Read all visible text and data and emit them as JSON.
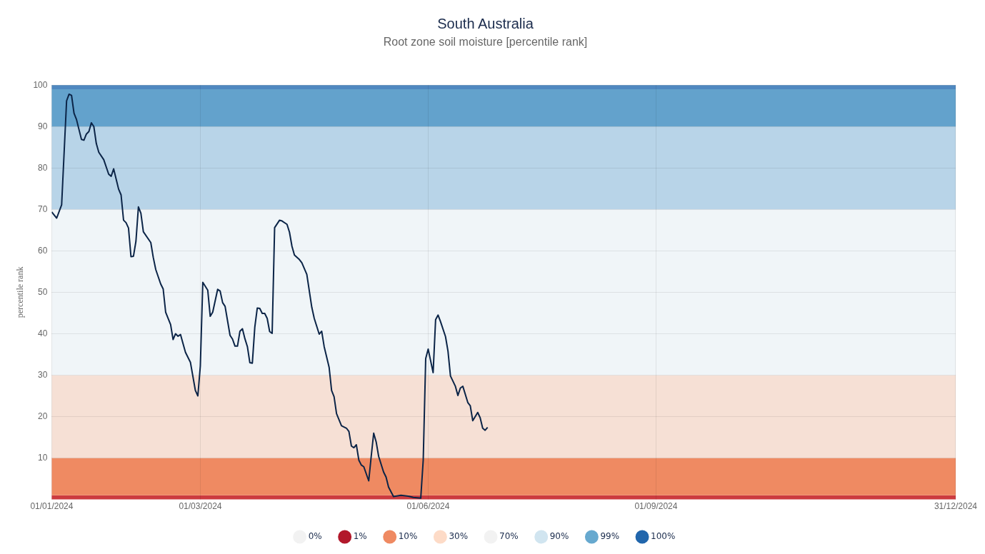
{
  "chart_data": {
    "type": "line",
    "title": "South Australia",
    "subtitle": "Root zone soil moisture [percentile rank]",
    "ylabel": "percentile rank",
    "xlim": [
      "2024-01-01",
      "2024-12-31"
    ],
    "xticks": [
      {
        "value": "2024-01-01",
        "label": "01/01/2024"
      },
      {
        "value": "2024-03-01",
        "label": "01/03/2024"
      },
      {
        "value": "2024-06-01",
        "label": "01/06/2024"
      },
      {
        "value": "2024-09-01",
        "label": "01/09/2024"
      },
      {
        "value": "2024-12-31",
        "label": "31/12/2024"
      }
    ],
    "ylim": [
      0,
      100
    ],
    "yticks": [
      10,
      20,
      30,
      40,
      50,
      60,
      70,
      80,
      90,
      100
    ],
    "grid": true,
    "legend": "bottom",
    "marker": "none",
    "bands": [
      {
        "axis": "y",
        "from": 0,
        "to": 1,
        "color": "#cc3b3f"
      },
      {
        "axis": "y",
        "from": 1,
        "to": 10,
        "color": "#ef8a62"
      },
      {
        "axis": "y",
        "from": 10,
        "to": 30,
        "color": "#f6e0d5"
      },
      {
        "axis": "y",
        "from": 30,
        "to": 70,
        "color": "#f0f5f8"
      },
      {
        "axis": "y",
        "from": 70,
        "to": 90,
        "color": "#b8d4e8"
      },
      {
        "axis": "y",
        "from": 90,
        "to": 99,
        "color": "#63a2cc"
      },
      {
        "axis": "y",
        "from": 99,
        "to": 100,
        "color": "#4f88c0"
      }
    ],
    "series": [
      {
        "color": "#0b2447",
        "x": [
          "2024-01-01",
          "2024-01-03",
          "2024-01-05",
          "2024-01-07",
          "2024-01-08",
          "2024-01-09",
          "2024-01-10",
          "2024-01-11",
          "2024-01-13",
          "2024-01-14",
          "2024-01-15",
          "2024-01-16",
          "2024-01-17",
          "2024-01-18",
          "2024-01-19",
          "2024-01-20",
          "2024-01-22",
          "2024-01-24",
          "2024-01-25",
          "2024-01-26",
          "2024-01-28",
          "2024-01-29",
          "2024-01-30",
          "2024-01-31",
          "2024-02-01",
          "2024-02-02",
          "2024-02-03",
          "2024-02-04",
          "2024-02-05",
          "2024-02-06",
          "2024-02-07",
          "2024-02-10",
          "2024-02-11",
          "2024-02-12",
          "2024-02-14",
          "2024-02-15",
          "2024-02-16",
          "2024-02-18",
          "2024-02-19",
          "2024-02-20",
          "2024-02-21",
          "2024-02-22",
          "2024-02-24",
          "2024-02-26",
          "2024-02-28",
          "2024-02-29",
          "2024-03-01",
          "2024-03-02",
          "2024-03-04",
          "2024-03-05",
          "2024-03-06",
          "2024-03-08",
          "2024-03-09",
          "2024-03-10",
          "2024-03-11",
          "2024-03-13",
          "2024-03-14",
          "2024-03-15",
          "2024-03-16",
          "2024-03-17",
          "2024-03-18",
          "2024-03-19",
          "2024-03-20",
          "2024-03-21",
          "2024-03-22",
          "2024-03-23",
          "2024-03-24",
          "2024-03-25",
          "2024-03-26",
          "2024-03-27",
          "2024-03-28",
          "2024-03-29",
          "2024-03-30",
          "2024-03-31",
          "2024-04-01",
          "2024-04-02",
          "2024-04-03",
          "2024-04-05",
          "2024-04-06",
          "2024-04-07",
          "2024-04-08",
          "2024-04-10",
          "2024-04-11",
          "2024-04-13",
          "2024-04-15",
          "2024-04-16",
          "2024-04-18",
          "2024-04-19",
          "2024-04-20",
          "2024-04-22",
          "2024-04-23",
          "2024-04-24",
          "2024-04-25",
          "2024-04-27",
          "2024-04-29",
          "2024-04-30",
          "2024-05-01",
          "2024-05-02",
          "2024-05-03",
          "2024-05-04",
          "2024-05-05",
          "2024-05-06",
          "2024-05-08",
          "2024-05-09",
          "2024-05-10",
          "2024-05-11",
          "2024-05-12",
          "2024-05-14",
          "2024-05-15",
          "2024-05-16",
          "2024-05-18",
          "2024-05-21",
          "2024-05-24",
          "2024-05-26",
          "2024-05-29",
          "2024-05-30",
          "2024-05-31",
          "2024-06-01",
          "2024-06-03",
          "2024-06-04",
          "2024-06-05",
          "2024-06-06",
          "2024-06-08",
          "2024-06-09",
          "2024-06-10",
          "2024-06-12",
          "2024-06-13",
          "2024-06-14",
          "2024-06-15",
          "2024-06-17",
          "2024-06-18",
          "2024-06-19",
          "2024-06-21",
          "2024-06-22",
          "2024-06-23",
          "2024-06-24",
          "2024-06-25"
        ],
        "values": [
          69.4,
          67.9,
          71.1,
          96.2,
          97.8,
          97.5,
          93.2,
          91.7,
          86.9,
          86.7,
          88.2,
          88.8,
          90.9,
          90.0,
          85.9,
          83.8,
          82.0,
          78.5,
          78.0,
          79.8,
          74.9,
          73.5,
          67.4,
          66.8,
          65.5,
          58.6,
          58.7,
          62.3,
          70.6,
          69.1,
          64.6,
          62.0,
          58.4,
          55.5,
          52.0,
          50.8,
          45.2,
          42.2,
          38.6,
          40.0,
          39.4,
          39.8,
          35.5,
          33.1,
          26.3,
          25.0,
          32.2,
          52.4,
          50.5,
          44.2,
          45.2,
          50.7,
          50.3,
          47.5,
          46.6,
          39.6,
          38.7,
          37.0,
          37.0,
          40.6,
          41.2,
          38.8,
          36.9,
          33.0,
          32.9,
          41.6,
          46.2,
          46.1,
          44.9,
          44.9,
          43.7,
          40.5,
          40.1,
          65.6,
          66.5,
          67.4,
          67.2,
          66.4,
          64.5,
          61.1,
          59.0,
          57.9,
          57.1,
          54.3,
          46.4,
          43.7,
          39.9,
          40.6,
          36.9,
          31.9,
          26.3,
          24.8,
          20.7,
          17.8,
          17.2,
          16.4,
          12.9,
          12.5,
          13.2,
          9.5,
          8.3,
          7.9,
          4.5,
          10.4,
          16.0,
          13.9,
          10.4,
          6.6,
          5.4,
          3.0,
          0.7,
          1.0,
          0.8,
          0.5,
          0.3,
          9.5,
          34.0,
          36.3,
          30.6,
          43.4,
          44.5,
          42.9,
          39.3,
          35.8,
          29.8,
          27.3,
          25.1,
          26.9,
          27.3,
          23.4,
          22.6,
          19.0,
          21.0,
          19.7,
          17.2,
          16.7,
          17.4
        ]
      },
      {
        "name": "0%",
        "color": "#f2f2f2"
      },
      {
        "name": "1%",
        "color": "#b2182b"
      },
      {
        "name": "10%",
        "color": "#ef8a62"
      },
      {
        "name": "30%",
        "color": "#fddbc7"
      },
      {
        "name": "70%",
        "color": "#f2f2f2"
      },
      {
        "name": "90%",
        "color": "#d1e5f0"
      },
      {
        "name": "99%",
        "color": "#67a9cf"
      },
      {
        "name": "100%",
        "color": "#2166ac"
      }
    ]
  }
}
